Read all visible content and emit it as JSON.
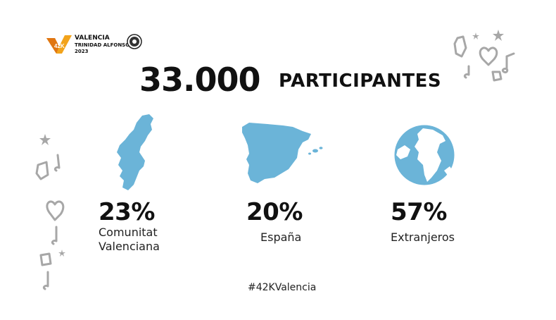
{
  "logo": {
    "badge_text": "42K",
    "line1": "VALENCIA",
    "line2": "TRINIDAD ALFONSO",
    "line3": "2023",
    "colors": {
      "badge": "#f2a31b",
      "badge_dark": "#e07612"
    }
  },
  "headline": {
    "number": "33.000",
    "word": "PARTICIPANTES"
  },
  "stats": [
    {
      "percent": "23%",
      "label_line1": "Comunitat",
      "label_line2": "Valenciana",
      "icon": "comunitat-valenciana-map-icon"
    },
    {
      "percent": "20%",
      "label_line1": "España",
      "label_line2": "",
      "icon": "spain-map-icon"
    },
    {
      "percent": "57%",
      "label_line1": "Extranjeros",
      "label_line2": "",
      "icon": "globe-icon"
    }
  ],
  "hashtag": "#42KValencia",
  "colors": {
    "map_fill": "#6bb4d8",
    "doodle": "#a7a7a7",
    "text": "#111111"
  }
}
